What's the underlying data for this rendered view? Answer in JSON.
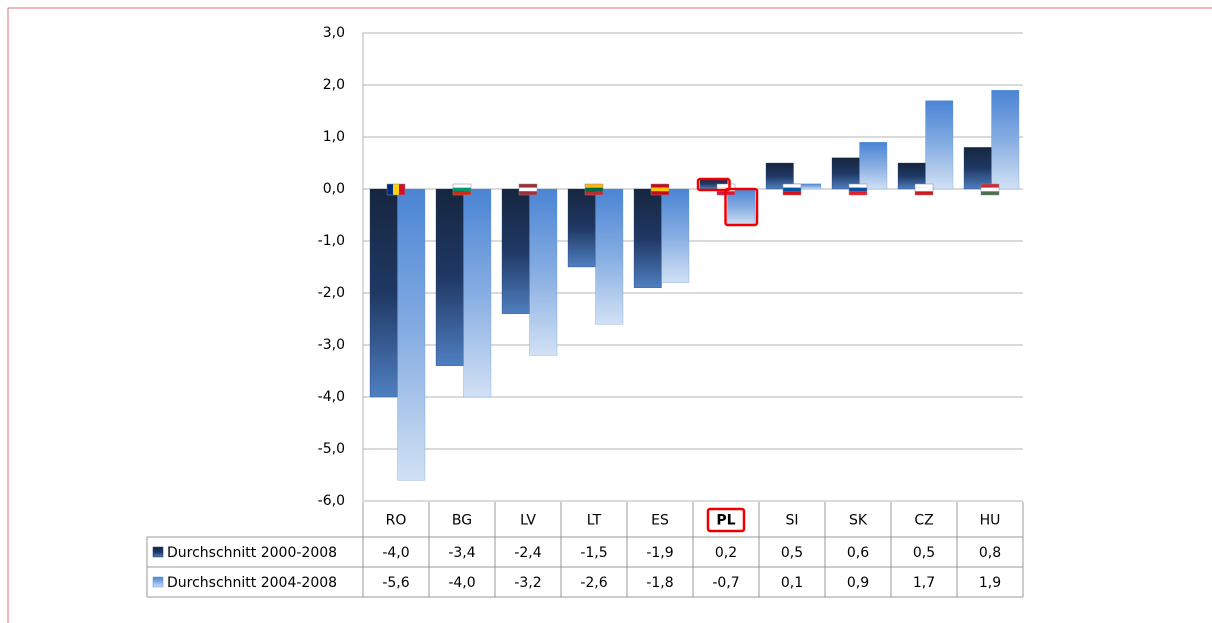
{
  "chart_data": {
    "type": "bar",
    "categories": [
      "RO",
      "BG",
      "LV",
      "LT",
      "ES",
      "PL",
      "SI",
      "SK",
      "CZ",
      "HU"
    ],
    "series": [
      {
        "name": "Durchschnitt 2000-2008",
        "color": "#1f3864",
        "values": [
          -4.0,
          -3.4,
          -2.4,
          -1.5,
          -1.9,
          0.2,
          0.5,
          0.6,
          0.5,
          0.8
        ],
        "value_labels": [
          "-4,0",
          "-3,4",
          "-2,4",
          "-1,5",
          "-1,9",
          "0,2",
          "0,5",
          "0,6",
          "0,5",
          "0,8"
        ]
      },
      {
        "name": "Durchschnitt 2004-2008",
        "color": "#5b8fd6",
        "values": [
          -5.6,
          -4.0,
          -3.2,
          -2.6,
          -1.8,
          -0.7,
          0.1,
          0.9,
          1.7,
          1.9
        ],
        "value_labels": [
          "-5,6",
          "-4,0",
          "-3,2",
          "-2,6",
          "-1,8",
          "-0,7",
          "0,1",
          "0,9",
          "1,7",
          "1,9"
        ]
      }
    ],
    "ylim": [
      -6,
      3
    ],
    "yticks": [
      {
        "value": -6,
        "label": "-6,0"
      },
      {
        "value": -5,
        "label": "-5,0"
      },
      {
        "value": -4,
        "label": "-4,0"
      },
      {
        "value": -3,
        "label": "-3,0"
      },
      {
        "value": -2,
        "label": "-2,0"
      },
      {
        "value": -1,
        "label": "-1,0"
      },
      {
        "value": 0,
        "label": "0,0"
      },
      {
        "value": 1,
        "label": "1,0"
      },
      {
        "value": 2,
        "label": "2,0"
      },
      {
        "value": 3,
        "label": "3,0"
      }
    ],
    "grid": true
  }
}
